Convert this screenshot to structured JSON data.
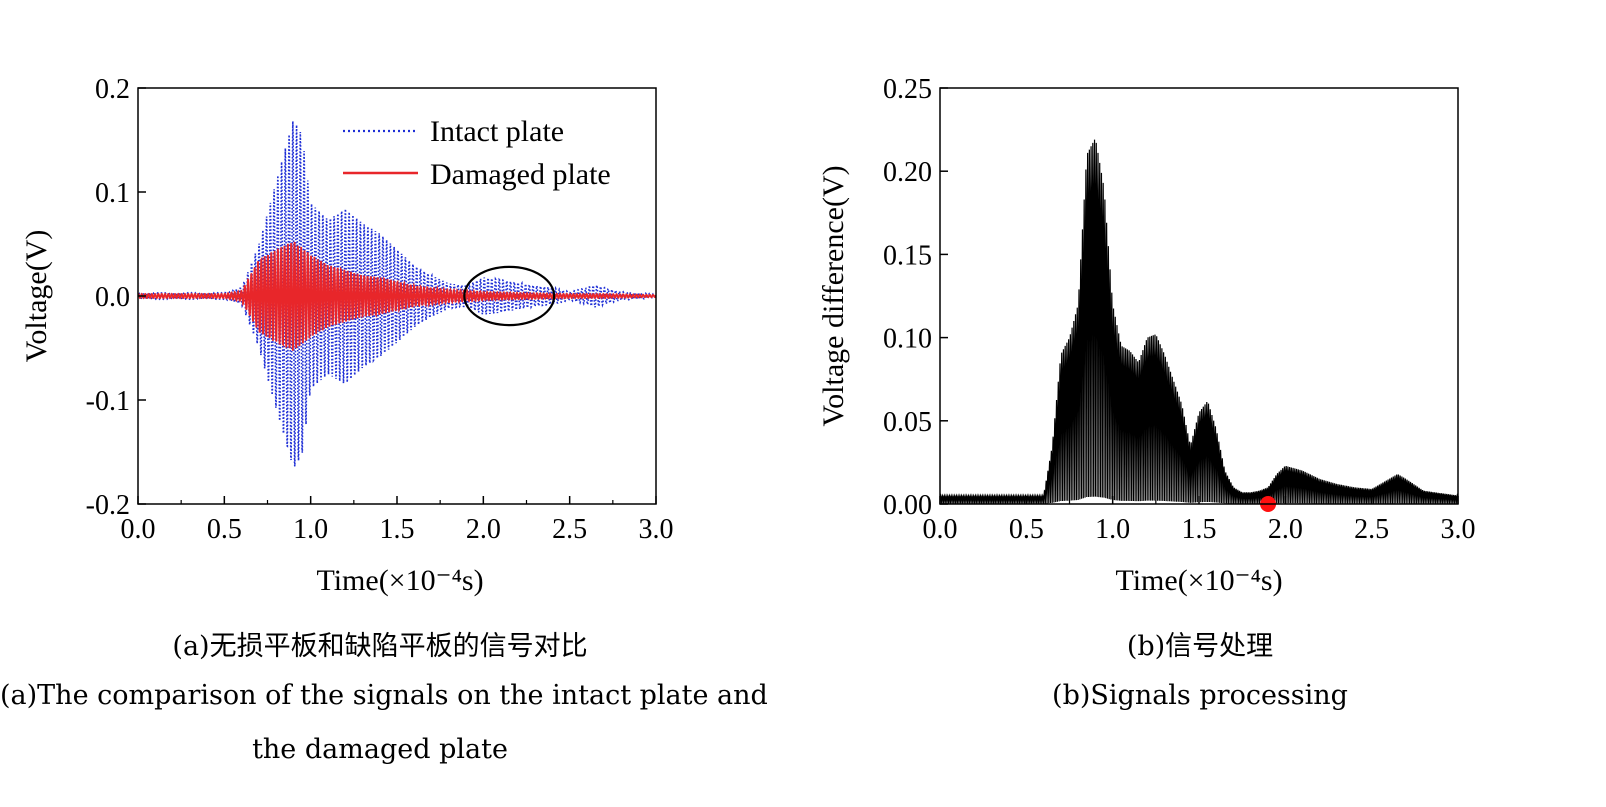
{
  "chart_data": [
    {
      "type": "line",
      "panel": "a",
      "xlabel": "Time(×10⁻⁴s)",
      "ylabel": "Voltage(V)",
      "xlim": [
        0.0,
        3.0
      ],
      "ylim": [
        -0.2,
        0.2
      ],
      "xticks": [
        "0.0",
        "0.5",
        "1.0",
        "1.5",
        "2.0",
        "2.5",
        "3.0"
      ],
      "yticks": [
        "0.2",
        "0.1",
        "0.0",
        "-0.1",
        "-0.2"
      ],
      "legend_position": "top-right",
      "grid": false,
      "series": [
        {
          "name": "Intact plate",
          "style": "dotted",
          "color": "#1f2fd6",
          "x": [
            0.0,
            0.5,
            0.6,
            0.7,
            0.8,
            0.85,
            0.9,
            0.95,
            1.0,
            1.1,
            1.2,
            1.3,
            1.4,
            1.5,
            1.6,
            1.7,
            1.8,
            1.9,
            2.0,
            2.1,
            2.2,
            2.3,
            2.4,
            2.5,
            2.6,
            2.65,
            2.7,
            2.8,
            3.0
          ],
          "envelope": [
            0.003,
            0.003,
            0.008,
            0.05,
            0.11,
            0.14,
            0.17,
            0.155,
            0.09,
            0.075,
            0.085,
            0.07,
            0.06,
            0.045,
            0.03,
            0.02,
            0.012,
            0.01,
            0.018,
            0.016,
            0.013,
            0.01,
            0.008,
            0.004,
            0.008,
            0.011,
            0.008,
            0.004,
            0.002
          ]
        },
        {
          "name": "Damaged plate",
          "style": "solid",
          "color": "#e8262a",
          "x": [
            0.0,
            0.5,
            0.6,
            0.7,
            0.8,
            0.9,
            1.0,
            1.1,
            1.2,
            1.3,
            1.4,
            1.5,
            1.6,
            1.7,
            1.8,
            1.9,
            2.0,
            2.2,
            2.5,
            2.7,
            3.0
          ],
          "envelope": [
            0.002,
            0.002,
            0.005,
            0.035,
            0.045,
            0.053,
            0.04,
            0.03,
            0.025,
            0.02,
            0.018,
            0.014,
            0.01,
            0.008,
            0.006,
            0.005,
            0.004,
            0.003,
            0.002,
            0.002,
            0.001
          ]
        }
      ],
      "annotations": [
        {
          "type": "ellipse",
          "x_center": 2.15,
          "y_center": 0.0,
          "x_radius": 0.26,
          "y_radius": 0.028
        }
      ]
    },
    {
      "type": "line",
      "panel": "b",
      "xlabel": "Time(×10⁻⁴s)",
      "ylabel": "Voltage difference(V)",
      "xlim": [
        0.0,
        3.0
      ],
      "ylim": [
        0.0,
        0.25
      ],
      "xticks": [
        "0.0",
        "0.5",
        "1.0",
        "1.5",
        "2.0",
        "2.5",
        "3.0"
      ],
      "yticks": [
        "0.25",
        "0.20",
        "0.15",
        "0.10",
        "0.05",
        "0.00"
      ],
      "grid": false,
      "series": [
        {
          "color": "#000000",
          "x": [
            0.0,
            0.6,
            0.65,
            0.7,
            0.75,
            0.8,
            0.85,
            0.9,
            0.95,
            1.0,
            1.05,
            1.1,
            1.15,
            1.2,
            1.25,
            1.3,
            1.35,
            1.4,
            1.45,
            1.5,
            1.55,
            1.6,
            1.65,
            1.7,
            1.75,
            1.8,
            1.85,
            1.9,
            1.95,
            2.0,
            2.1,
            2.2,
            2.3,
            2.4,
            2.5,
            2.6,
            2.65,
            2.7,
            2.8,
            3.0
          ],
          "envelope": [
            0.005,
            0.005,
            0.035,
            0.09,
            0.1,
            0.12,
            0.21,
            0.22,
            0.19,
            0.12,
            0.095,
            0.092,
            0.085,
            0.1,
            0.102,
            0.09,
            0.075,
            0.06,
            0.035,
            0.055,
            0.062,
            0.045,
            0.02,
            0.01,
            0.007,
            0.007,
            0.008,
            0.01,
            0.018,
            0.023,
            0.02,
            0.015,
            0.012,
            0.01,
            0.009,
            0.015,
            0.018,
            0.015,
            0.008,
            0.005
          ]
        }
      ],
      "markers": [
        {
          "x": 1.9,
          "y": 0.0,
          "color": "#ff1010"
        }
      ]
    }
  ],
  "captions": {
    "a_cn": "(a)无损平板和缺陷平板的信号对比",
    "a_en_line1": "(a)The comparison of the signals on the intact plate and",
    "a_en_line2": "the damaged plate",
    "b_cn": "(b)信号处理",
    "b_en": "(b)Signals processing"
  }
}
